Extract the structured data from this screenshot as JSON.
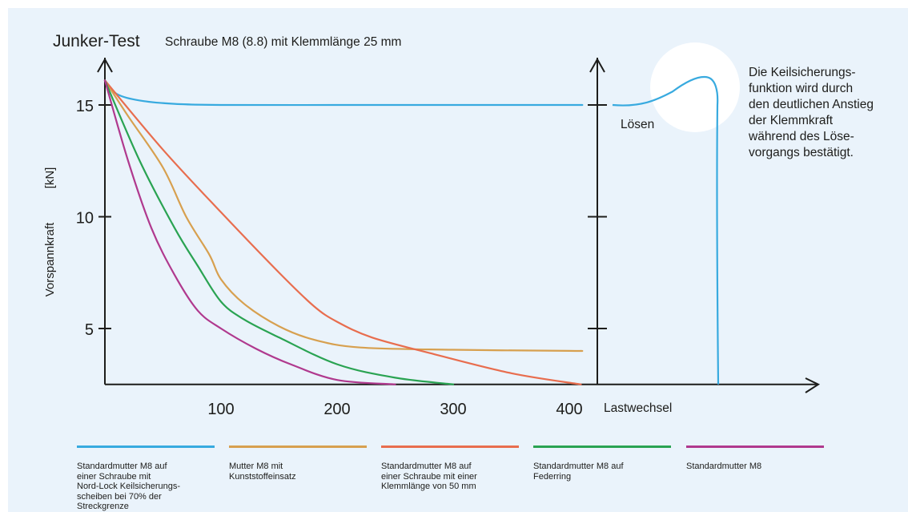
{
  "chart_data": {
    "type": "line",
    "title": "Junker-Test",
    "subtitle": "Schraube M8 (8.8) mit Klemmlänge 25 mm",
    "xlabel": "Lastwechsel",
    "ylabel": "Vorspannkraft [kN]",
    "y_label_parts": [
      "Vorspannkraft",
      "[kN]"
    ],
    "xlim": [
      0,
      430
    ],
    "ylim": [
      2.5,
      17
    ],
    "x_ticks": [
      100,
      200,
      300,
      400
    ],
    "y_ticks": [
      5,
      10,
      15
    ],
    "grid": false,
    "series": [
      {
        "name": "Standardmutter M8 auf einer Schraube mit Nord-Lock Keilsicherungsscheiben bei 70% der Streckgrenze",
        "color": "#38aadf",
        "x": [
          0,
          10,
          30,
          60,
          100,
          200,
          300,
          400,
          410
        ],
        "y": [
          16.1,
          15.5,
          15.2,
          15.05,
          15.0,
          15.0,
          15.0,
          15.0,
          15.0
        ]
      },
      {
        "name": "Mutter M8 mit Kunststoffeinsatz",
        "color": "#d7a04f",
        "x": [
          0,
          20,
          50,
          70,
          90,
          100,
          120,
          150,
          180,
          220,
          300,
          400,
          410
        ],
        "y": [
          16.1,
          14.5,
          12.2,
          10.0,
          8.3,
          7.2,
          6.1,
          5.1,
          4.5,
          4.15,
          4.05,
          4.0,
          4.0
        ]
      },
      {
        "name": "Standardmutter M8 auf einer Schraube mit einer Klemmlänge von 50 mm",
        "color": "#e86d4e",
        "x": [
          0,
          50,
          100,
          150,
          180,
          200,
          230,
          280,
          350,
          410
        ],
        "y": [
          16.1,
          13.0,
          10.2,
          7.5,
          6.0,
          5.3,
          4.6,
          3.9,
          3.0,
          2.5
        ],
        "x_after_axis": 410
      },
      {
        "name": "Standardmutter M8 auf Federring",
        "color": "#2aa352",
        "x": [
          0,
          30,
          60,
          80,
          100,
          120,
          150,
          200,
          250,
          300
        ],
        "y": [
          16.1,
          12.5,
          9.5,
          7.8,
          6.2,
          5.4,
          4.6,
          3.4,
          2.8,
          2.5
        ]
      },
      {
        "name": "Standardmutter M8",
        "color": "#b0398e",
        "x": [
          0,
          20,
          40,
          60,
          80,
          100,
          130,
          160,
          200,
          250
        ],
        "y": [
          16.1,
          12.5,
          9.5,
          7.4,
          5.8,
          5.0,
          4.1,
          3.4,
          2.7,
          2.5
        ]
      }
    ],
    "secondary_panel": {
      "label": "Lösen",
      "color": "#38aadf"
    },
    "note": [
      "Die Keilsicherungs-",
      "funktion wird durch",
      "den deutlichen Anstieg",
      "der Klemmkraft",
      "während des Löse-",
      "vorgangs bestätigt."
    ]
  },
  "legend": [
    {
      "color": "#38aadf",
      "lines": [
        "Standardmutter M8 auf",
        "einer Schraube mit",
        "Nord-Lock Keilsicherungs-",
        "scheiben bei 70% der",
        "Streckgrenze"
      ]
    },
    {
      "color": "#d7a04f",
      "lines": [
        "Mutter M8 mit",
        "Kunststoffeinsatz"
      ]
    },
    {
      "color": "#e86d4e",
      "lines": [
        "Standardmutter M8 auf",
        "einer Schraube mit einer",
        "Klemmlänge von 50 mm"
      ]
    },
    {
      "color": "#2aa352",
      "lines": [
        "Standardmutter M8 auf",
        "Federring"
      ]
    },
    {
      "color": "#b0398e",
      "lines": [
        "Standardmutter M8"
      ]
    }
  ]
}
